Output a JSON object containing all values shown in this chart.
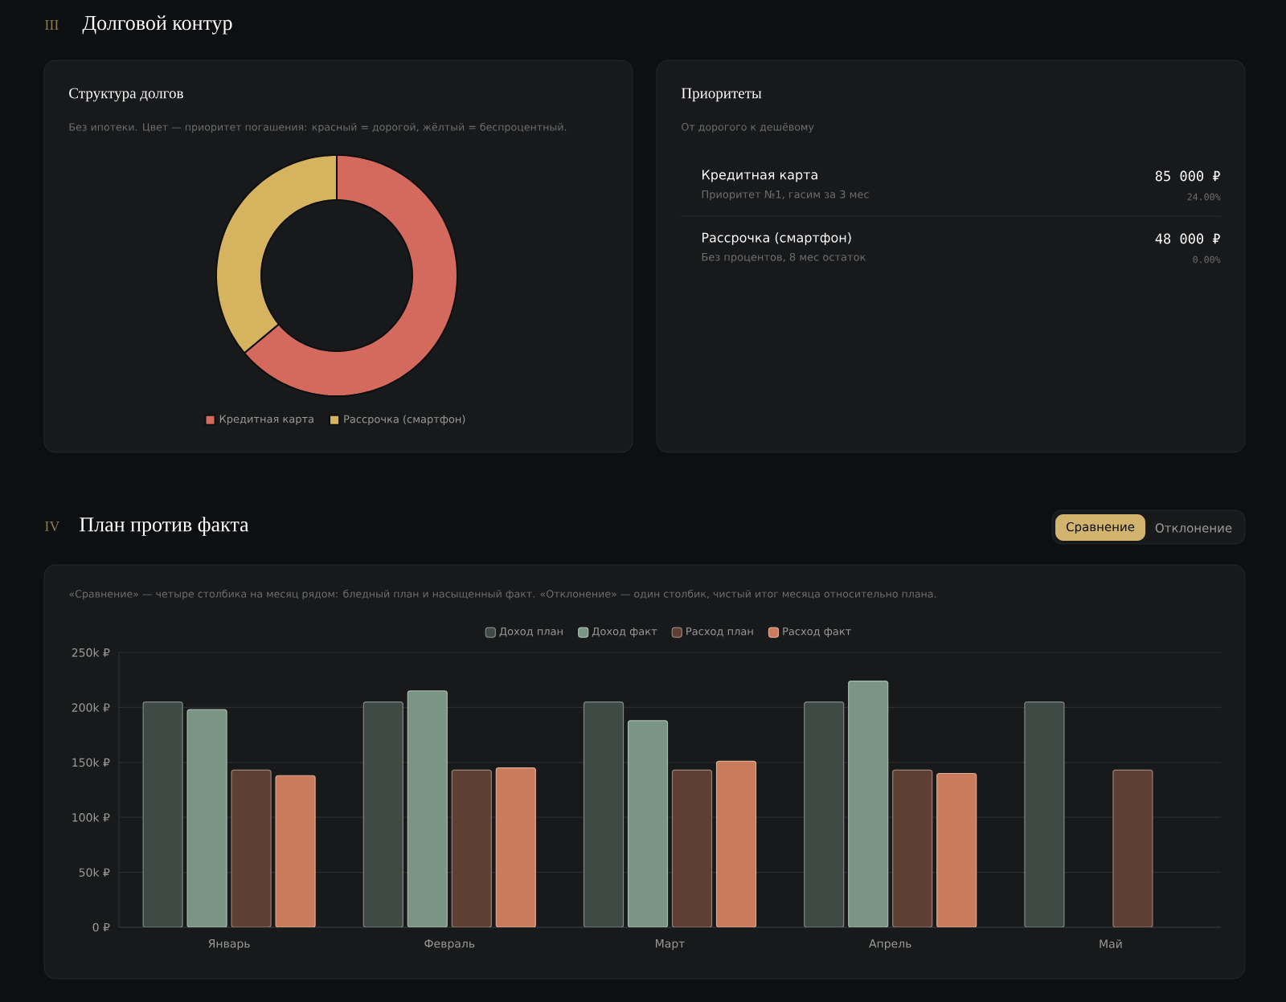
{
  "chart_data": [
    {
      "type": "donut",
      "title": "Структура долгов",
      "subtitle": "Без ипотеки. Цвет — приоритет погашения: красный = дорогой, жёлтый = беспроцентный.",
      "annotations": [
        "III",
        "Долговой контур"
      ],
      "categories": [
        "Кредитная карта",
        "Рассрочка (смартфон)"
      ],
      "values": [
        63.9,
        36.1
      ],
      "colors": [
        "#d4695e",
        "#d6b35e"
      ],
      "legend": "bottom"
    },
    {
      "type": "other",
      "title": "Приоритеты",
      "subtitle": "От дорогого к дешёвому",
      "annotations": [
        "Кредитная карта",
        "Приоритет №1, гасим за 3 мес",
        "85 000 ₽",
        "24.00%",
        "Рассрочка (смартфон)",
        "Без процентов, 8 мес остаток",
        "48 000 ₽",
        "0.00%"
      ]
    },
    {
      "type": "bar",
      "subtitle": "«Сравнение» — четыре столбика на месяц рядом: бледный план и насыщенный факт. «Отклонение» — один столбик, чистый итог месяца относительно плана.",
      "annotations": [
        "IV",
        "План против факта",
        "Сравнение",
        "Отклонение"
      ],
      "categories": [
        "Январь",
        "Февраль",
        "Март",
        "Апрель",
        "Май"
      ],
      "series": [
        {
          "name": "Доход план",
          "color": "#3e4a43",
          "values": [
            205000,
            205000,
            205000,
            205000,
            205000
          ]
        },
        {
          "name": "Доход факт",
          "color": "#7b9584",
          "values": [
            198000,
            215000,
            188000,
            224000,
            null
          ]
        },
        {
          "name": "Расход план",
          "color": "#5f3e33",
          "values": [
            143000,
            143000,
            143000,
            143000,
            143000
          ]
        },
        {
          "name": "Расход факт",
          "color": "#c97b5b",
          "values": [
            138000,
            145000,
            151000,
            140000,
            null
          ]
        }
      ],
      "ylim": [
        0,
        250000
      ],
      "yticks": [
        {
          "value": 0,
          "label": "0 ₽"
        },
        {
          "value": 50000,
          "label": "50k ₽"
        },
        {
          "value": 100000,
          "label": "100k ₽"
        },
        {
          "value": 150000,
          "label": "150k ₽"
        },
        {
          "value": 200000,
          "label": "200k ₽"
        },
        {
          "value": 250000,
          "label": "250k ₽"
        }
      ],
      "grid": "y",
      "legend": "top"
    }
  ]
}
